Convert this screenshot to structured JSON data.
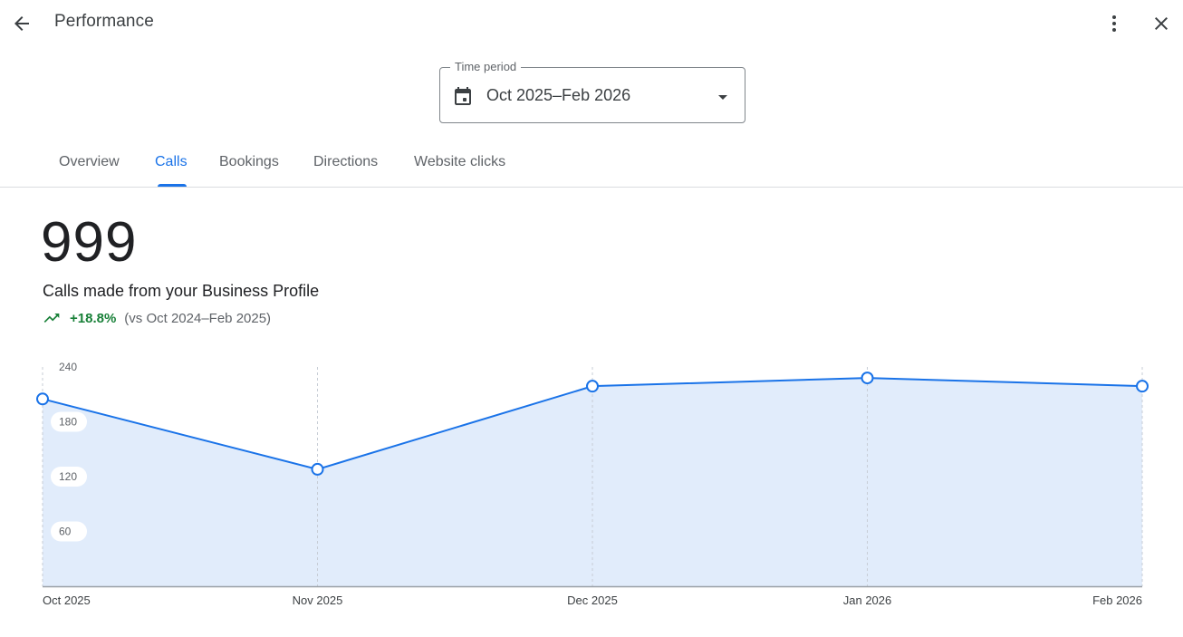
{
  "header": {
    "title": "Performance",
    "back_icon": "arrow-back-icon",
    "more_icon": "more-vert-icon",
    "close_icon": "close-icon"
  },
  "time_period": {
    "label": "Time period",
    "value": "Oct 2025–Feb 2026",
    "icon": "calendar-icon"
  },
  "tabs": [
    {
      "label": "Overview",
      "active": false
    },
    {
      "label": "Calls",
      "active": true
    },
    {
      "label": "Bookings",
      "active": false
    },
    {
      "label": "Directions",
      "active": false
    },
    {
      "label": "Website clicks",
      "active": false
    }
  ],
  "metric": {
    "value": "999",
    "caption": "Calls made from your Business Profile",
    "change": "+18.8%",
    "comparison": "(vs Oct 2024–Feb 2025)",
    "trend_icon": "trending-up-icon"
  },
  "colors": {
    "accent": "#1a73e8",
    "positive": "#188038",
    "area_fill": "#e1ecfb"
  },
  "chart_data": {
    "type": "area",
    "categories": [
      "Oct 2025",
      "Nov 2025",
      "Dec 2025",
      "Jan 2026",
      "Feb 2026"
    ],
    "values": [
      205,
      128,
      219,
      228,
      219
    ],
    "yticks": [
      60,
      120,
      180,
      240
    ],
    "ylim": [
      0,
      240
    ],
    "grid": "vertical dashed",
    "legend": "none"
  }
}
